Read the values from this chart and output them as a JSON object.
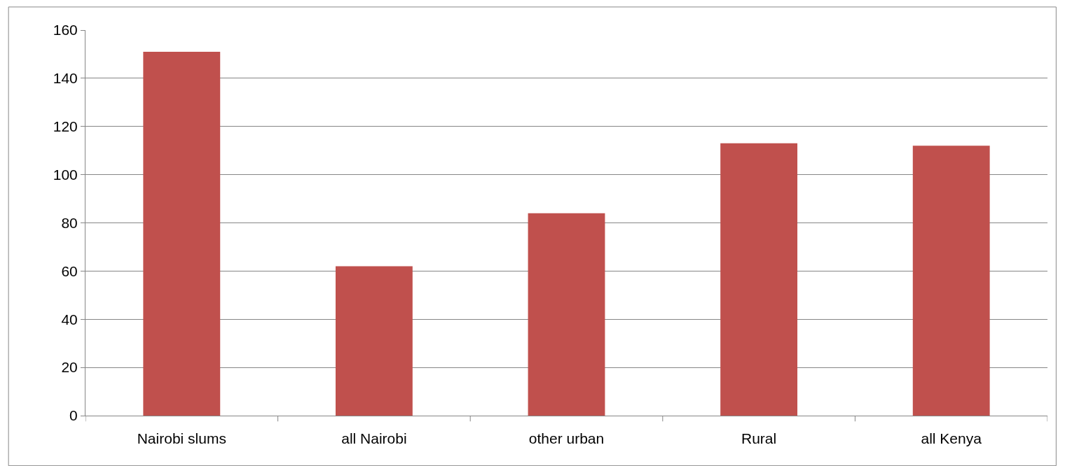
{
  "chart_data": {
    "type": "bar",
    "categories": [
      "Nairobi slums",
      "all Nairobi",
      "other urban",
      "Rural",
      "all Kenya"
    ],
    "values": [
      151,
      62,
      84,
      113,
      112
    ],
    "color": "#c0504d",
    "ylim": [
      0,
      160
    ],
    "yticks": [
      0,
      20,
      40,
      60,
      80,
      100,
      120,
      140,
      160
    ],
    "grid": "y"
  }
}
